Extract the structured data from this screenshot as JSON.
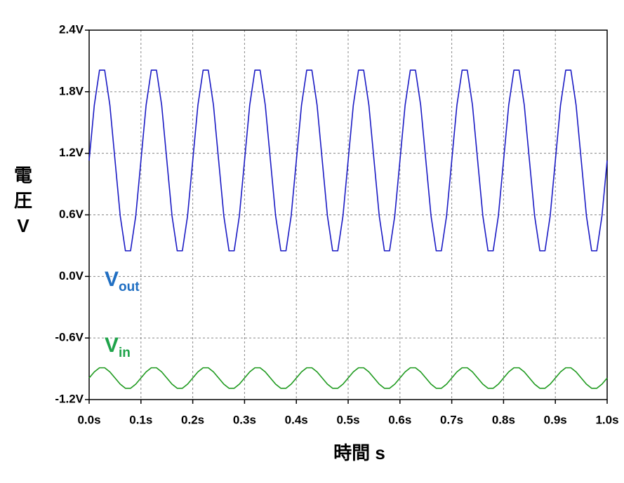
{
  "chart_data": {
    "type": "line",
    "xlabel": "時間 s",
    "ylabel": "電圧V",
    "x": [
      0,
      0.01,
      0.02,
      0.03,
      0.04,
      0.05,
      0.06,
      0.07,
      0.08,
      0.09,
      0.1,
      0.11,
      0.12,
      0.13,
      0.14,
      0.15,
      0.16,
      0.17,
      0.18,
      0.19,
      0.2,
      0.21,
      0.22,
      0.23,
      0.24,
      0.25,
      0.26,
      0.27,
      0.28,
      0.29,
      0.3,
      0.31,
      0.32,
      0.33,
      0.34,
      0.35,
      0.36,
      0.37,
      0.38,
      0.39,
      0.4,
      0.41,
      0.42,
      0.43,
      0.44,
      0.45,
      0.46,
      0.47,
      0.48,
      0.49,
      0.5,
      0.51,
      0.52,
      0.53,
      0.54,
      0.55,
      0.56,
      0.57,
      0.58,
      0.59,
      0.6,
      0.61,
      0.62,
      0.63,
      0.64,
      0.65,
      0.66,
      0.67,
      0.68,
      0.69,
      0.7,
      0.71,
      0.72,
      0.73,
      0.74,
      0.75,
      0.76,
      0.77,
      0.78,
      0.79,
      0.8,
      0.81,
      0.82,
      0.83,
      0.84,
      0.85,
      0.86,
      0.87,
      0.88,
      0.89,
      0.9,
      0.91,
      0.92,
      0.93,
      0.94,
      0.95,
      0.96,
      0.97,
      0.98,
      0.99,
      1
    ],
    "series": [
      {
        "name": "Vout",
        "color": "#1a1ac4",
        "label_color": "#1f6ec2",
        "values": [
          1.13,
          1.67,
          2.01,
          2.01,
          1.67,
          1.13,
          0.59,
          0.25,
          0.25,
          0.59,
          1.13,
          1.67,
          2.01,
          2.01,
          1.67,
          1.13,
          0.59,
          0.25,
          0.25,
          0.59,
          1.13,
          1.67,
          2.01,
          2.01,
          1.67,
          1.13,
          0.59,
          0.25,
          0.25,
          0.59,
          1.13,
          1.67,
          2.01,
          2.01,
          1.67,
          1.13,
          0.59,
          0.25,
          0.25,
          0.59,
          1.13,
          1.67,
          2.01,
          2.01,
          1.67,
          1.13,
          0.59,
          0.25,
          0.25,
          0.59,
          1.13,
          1.67,
          2.01,
          2.01,
          1.67,
          1.13,
          0.59,
          0.25,
          0.25,
          0.59,
          1.13,
          1.67,
          2.01,
          2.01,
          1.67,
          1.13,
          0.59,
          0.25,
          0.25,
          0.59,
          1.13,
          1.67,
          2.01,
          2.01,
          1.67,
          1.13,
          0.59,
          0.25,
          0.25,
          0.59,
          1.13,
          1.67,
          2.01,
          2.01,
          1.67,
          1.13,
          0.59,
          0.25,
          0.25,
          0.59,
          1.13,
          1.67,
          2.01,
          2.01,
          1.67,
          1.13,
          0.59,
          0.25,
          0.25,
          0.59,
          1.13
        ]
      },
      {
        "name": "Vin",
        "color": "#1e9a1e",
        "label_color": "#1fa34a",
        "values": [
          -0.99,
          -0.93,
          -0.89,
          -0.89,
          -0.93,
          -0.99,
          -1.05,
          -1.09,
          -1.09,
          -1.05,
          -0.99,
          -0.93,
          -0.89,
          -0.89,
          -0.93,
          -0.99,
          -1.05,
          -1.09,
          -1.09,
          -1.05,
          -0.99,
          -0.93,
          -0.89,
          -0.89,
          -0.93,
          -0.99,
          -1.05,
          -1.09,
          -1.09,
          -1.05,
          -0.99,
          -0.93,
          -0.89,
          -0.89,
          -0.93,
          -0.99,
          -1.05,
          -1.09,
          -1.09,
          -1.05,
          -0.99,
          -0.93,
          -0.89,
          -0.89,
          -0.93,
          -0.99,
          -1.05,
          -1.09,
          -1.09,
          -1.05,
          -0.99,
          -0.93,
          -0.89,
          -0.89,
          -0.93,
          -0.99,
          -1.05,
          -1.09,
          -1.09,
          -1.05,
          -0.99,
          -0.93,
          -0.89,
          -0.89,
          -0.93,
          -0.99,
          -1.05,
          -1.09,
          -1.09,
          -1.05,
          -0.99,
          -0.93,
          -0.89,
          -0.89,
          -0.93,
          -0.99,
          -1.05,
          -1.09,
          -1.09,
          -1.05,
          -0.99,
          -0.93,
          -0.89,
          -0.89,
          -0.93,
          -0.99,
          -1.05,
          -1.09,
          -1.09,
          -1.05,
          -0.99,
          -0.93,
          -0.89,
          -0.89,
          -0.93,
          -0.99,
          -1.05,
          -1.09,
          -1.09,
          -1.05,
          -0.99
        ]
      }
    ],
    "xlim": [
      0,
      1
    ],
    "xticks": [
      {
        "value": 0,
        "label": "0.0s"
      },
      {
        "value": 0.1,
        "label": "0.1s"
      },
      {
        "value": 0.2,
        "label": "0.2s"
      },
      {
        "value": 0.3,
        "label": "0.3s"
      },
      {
        "value": 0.4,
        "label": "0.4s"
      },
      {
        "value": 0.5,
        "label": "0.5s"
      },
      {
        "value": 0.6,
        "label": "0.6s"
      },
      {
        "value": 0.7,
        "label": "0.7s"
      },
      {
        "value": 0.8,
        "label": "0.8s"
      },
      {
        "value": 0.9,
        "label": "0.9s"
      },
      {
        "value": 1,
        "label": "1.0s"
      }
    ],
    "ylim": [
      -1.2,
      2.4
    ],
    "yticks": [
      {
        "value": -1.2,
        "label": "-1.2V"
      },
      {
        "value": -0.6,
        "label": "-0.6V"
      },
      {
        "value": 0,
        "label": "0.0V"
      },
      {
        "value": 0.6,
        "label": "0.6V"
      },
      {
        "value": 1.2,
        "label": "1.2V"
      },
      {
        "value": 1.8,
        "label": "1.8V"
      },
      {
        "value": 2.4,
        "label": "2.4V"
      }
    ],
    "grid": true
  }
}
